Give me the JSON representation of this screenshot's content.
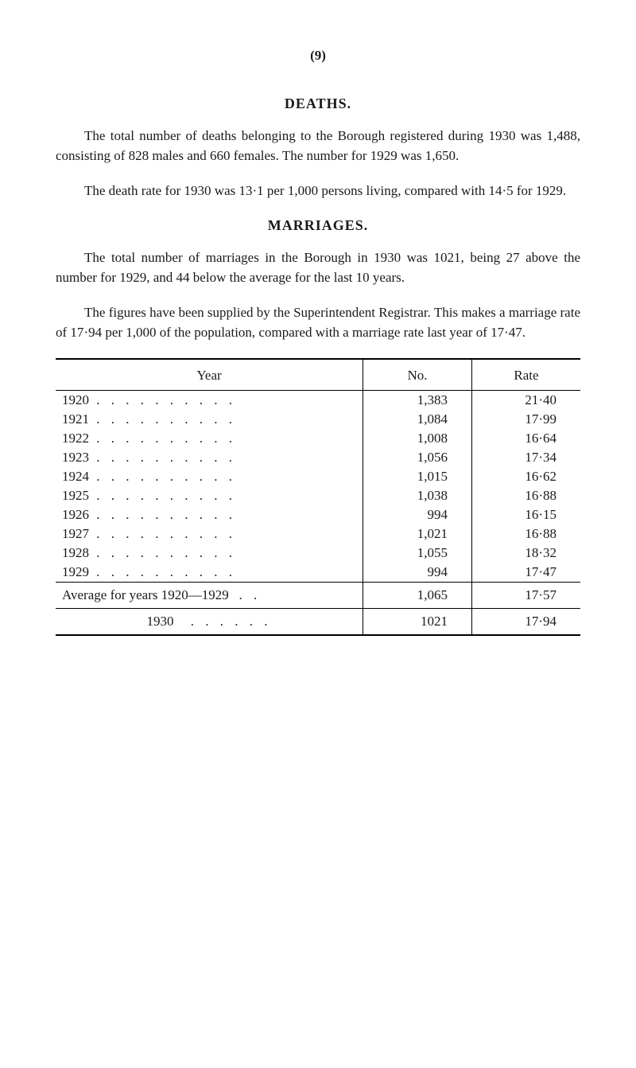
{
  "page_number": "(9)",
  "sections": {
    "deaths": {
      "heading": "DEATHS.",
      "paragraphs": [
        "The total number of deaths belonging to the Borough registered during 1930 was 1,488, consisting of 828 males and 660 females. The number for 1929 was 1,650.",
        "The death rate for 1930 was 13·1 per 1,000 persons living, compared with 14·5 for 1929."
      ]
    },
    "marriages": {
      "heading": "MARRIAGES.",
      "paragraphs": [
        "The total number of marriages in the Borough in 1930 was 1021, being 27 above the number for 1929, and 44 below the average for the last 10 years.",
        "The figures have been supplied by the Superintendent Registrar. This makes a marriage rate of 17·94 per 1,000 of the population, compared with a marriage rate last year of 17·47."
      ]
    }
  },
  "table": {
    "headers": {
      "year": "Year",
      "no": "No.",
      "rate": "Rate"
    },
    "rows": [
      {
        "year": "1920",
        "no": "1,383",
        "rate": "21·40"
      },
      {
        "year": "1921",
        "no": "1,084",
        "rate": "17·99"
      },
      {
        "year": "1922",
        "no": "1,008",
        "rate": "16·64"
      },
      {
        "year": "1923",
        "no": "1,056",
        "rate": "17·34"
      },
      {
        "year": "1924",
        "no": "1,015",
        "rate": "16·62"
      },
      {
        "year": "1925",
        "no": "1,038",
        "rate": "16·88"
      },
      {
        "year": "1926",
        "no": "994",
        "rate": "16·15"
      },
      {
        "year": "1927",
        "no": "1,021",
        "rate": "16·88"
      },
      {
        "year": "1928",
        "no": "1,055",
        "rate": "18·32"
      },
      {
        "year": "1929",
        "no": "994",
        "rate": "17·47"
      }
    ],
    "average_row": {
      "label": "Average for years 1920—1929",
      "no": "1,065",
      "rate": "17·57"
    },
    "final_row": {
      "label": "1930",
      "no": "1021",
      "rate": "17·94"
    },
    "dot_leader": ". .   . .   . .   . .   . ."
  }
}
